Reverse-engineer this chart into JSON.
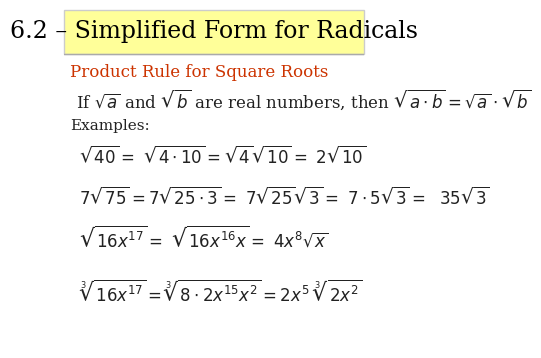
{
  "title": "6.2 – Simplified Form for Radicals",
  "title_bg": "#ffff99",
  "title_color": "#000000",
  "title_fontsize": 17,
  "subtitle": "Product Rule for Square Roots",
  "subtitle_color": "#cc3300",
  "subtitle_fontsize": 12,
  "rule_text": "If $\\sqrt{a}$ and $\\sqrt{b}$ are real numbers, then $\\sqrt{a \\cdot b} = \\sqrt{a} \\cdot \\sqrt{b}$",
  "rule_fontsize": 12,
  "examples_label": "Examples:",
  "examples_fontsize": 11,
  "example1": "$\\sqrt{40} = \\ \\sqrt{4 \\cdot 10} = \\sqrt{4}\\sqrt{10} = \\ 2\\sqrt{10}$",
  "example2": "$7\\sqrt{75} = 7\\sqrt{25 \\cdot 3} = \\ 7\\sqrt{25}\\sqrt{3} = \\ 7 \\cdot 5\\sqrt{3} = \\ \\ 35\\sqrt{3}$",
  "example3": "$\\sqrt{16x^{17}} = \\ \\sqrt{16x^{16}x} = \\ 4x^8\\sqrt{x}$",
  "example4": "$\\sqrt[3]{16x^{17}} = \\sqrt[3]{8 \\cdot 2x^{15}x^2} = 2x^5 \\ \\sqrt[3]{2x^2}$",
  "example_fontsize": 12,
  "bg_color": "#ffffff",
  "header_line_color": "#aaaaaa",
  "text_color": "#333333"
}
